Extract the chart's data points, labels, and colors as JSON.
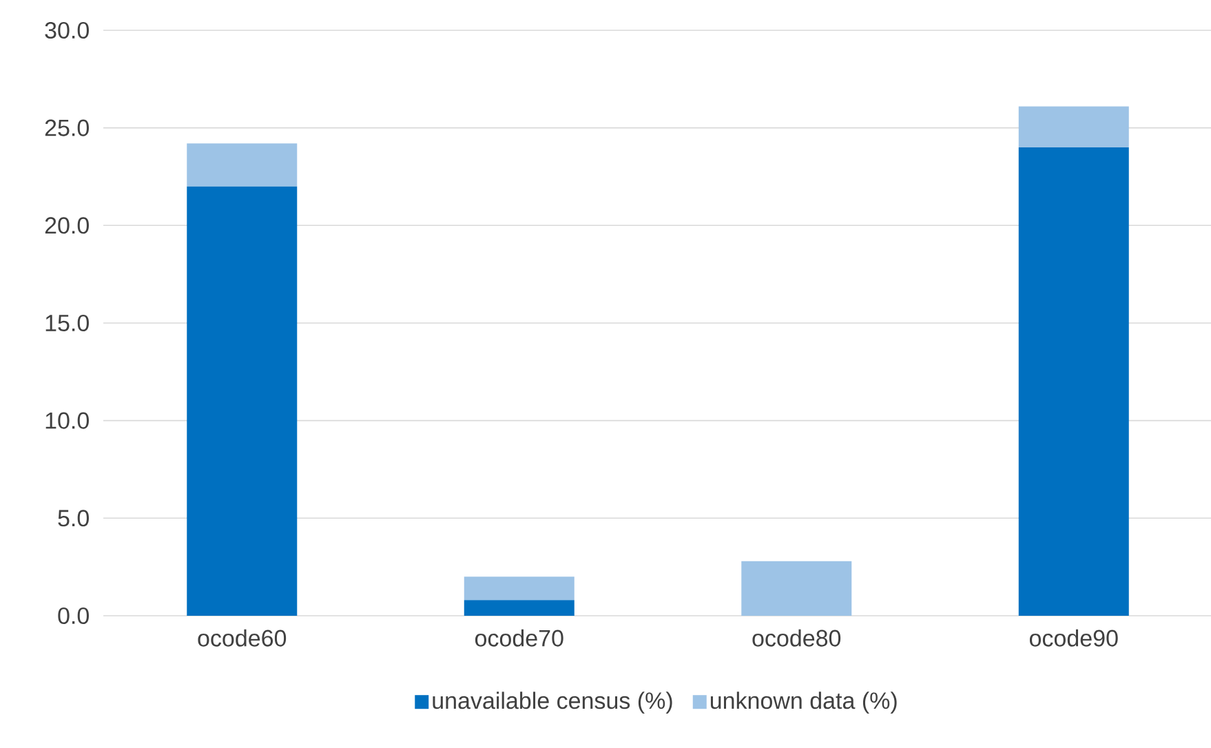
{
  "chart_data": {
    "type": "bar",
    "stacked": true,
    "categories": [
      "ocode60",
      "ocode70",
      "ocode80",
      "ocode90"
    ],
    "series": [
      {
        "name": "unavailable census (%)",
        "color": "#0070c0",
        "values": [
          22.0,
          0.8,
          0,
          24.0
        ]
      },
      {
        "name": "unknown data (%)",
        "color": "#9dc3e6",
        "values": [
          2.2,
          1.2,
          2.8,
          2.1
        ]
      }
    ],
    "ylim": [
      0,
      30
    ],
    "yticks": [
      {
        "value": 0,
        "label": "0.0"
      },
      {
        "value": 5,
        "label": "5.0"
      },
      {
        "value": 10,
        "label": "10.0"
      },
      {
        "value": 15,
        "label": "15.0"
      },
      {
        "value": 20,
        "label": "20.0"
      },
      {
        "value": 25,
        "label": "25.0"
      },
      {
        "value": 30,
        "label": "30.0"
      }
    ],
    "grid": "y",
    "legend": "bottom"
  }
}
